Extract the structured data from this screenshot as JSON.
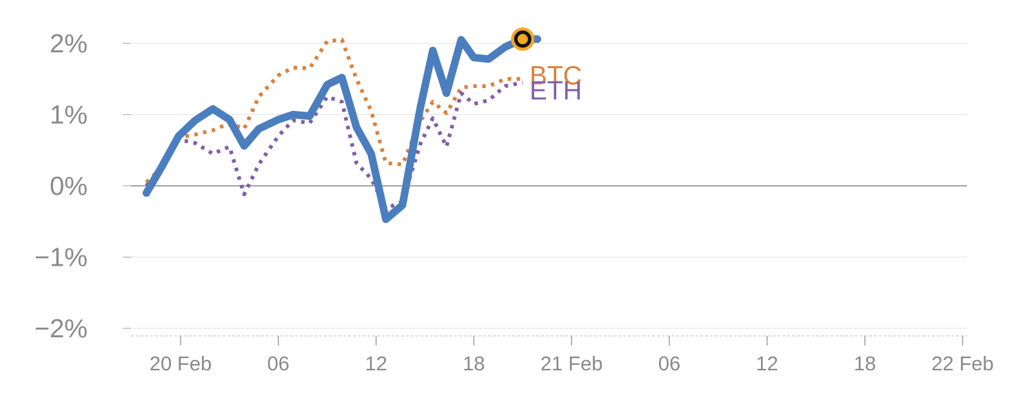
{
  "chart_data": {
    "type": "line",
    "title": "",
    "xlabel": "",
    "ylabel": "",
    "ylim": [
      -2,
      2
    ],
    "y_ticks": [
      {
        "value": 2,
        "label": "2%"
      },
      {
        "value": 1,
        "label": "1%"
      },
      {
        "value": 0,
        "label": "0%"
      },
      {
        "value": -1,
        "label": "−1%"
      },
      {
        "value": -2,
        "label": "−2%"
      }
    ],
    "x_hours_range": [
      -5,
      80
    ],
    "x_ticks": [
      {
        "hour": 0,
        "label": "20 Feb"
      },
      {
        "hour": 10,
        "label": "06"
      },
      {
        "hour": 20,
        "label": "12"
      },
      {
        "hour": 30,
        "label": "18"
      },
      {
        "hour": 40,
        "label": "21 Feb"
      },
      {
        "hour": 50,
        "label": "06"
      },
      {
        "hour": 60,
        "label": "12"
      },
      {
        "hour": 70,
        "label": "18"
      },
      {
        "hour": 80,
        "label": "22 Feb"
      }
    ],
    "grid": true,
    "colors": {
      "main": "#4a7ebf",
      "btc": "#d9823b",
      "eth": "#7f5fa6",
      "marker_fill": "#f5a623",
      "marker_stroke": "#111111",
      "grid": "#e6e6e6",
      "zero": "#888888",
      "axis": "#d0d0d0"
    },
    "series": [
      {
        "key": "main",
        "style": "solid",
        "x": [
          -3.5,
          -2,
          -0.2,
          1.5,
          3.3,
          5,
          6.5,
          8,
          10,
          11.5,
          13.2,
          15,
          16.5,
          18,
          19.5,
          21,
          22.7,
          24.5,
          25.8,
          27.2,
          28.7,
          30,
          31.5,
          33.2,
          35,
          36.5
        ],
        "y": [
          -0.1,
          0.25,
          0.7,
          0.92,
          1.08,
          0.93,
          0.56,
          0.8,
          0.93,
          1.0,
          0.98,
          1.42,
          1.52,
          0.82,
          0.45,
          -0.47,
          -0.27,
          1.08,
          1.9,
          1.3,
          2.05,
          1.8,
          1.78,
          1.95,
          2.06,
          2.06
        ]
      },
      {
        "key": "btc",
        "name": "BTC",
        "style": "dotted",
        "x": [
          -3.5,
          -2,
          -0.2,
          1.5,
          3.3,
          5,
          6.5,
          8,
          10,
          11.5,
          13.2,
          15,
          16.5,
          18,
          19.5,
          21,
          22.7,
          24.5,
          25.8,
          27.2,
          28.7,
          30,
          31.5,
          33.2,
          35
        ],
        "y": [
          0.05,
          0.25,
          0.68,
          0.72,
          0.78,
          0.88,
          0.8,
          1.25,
          1.55,
          1.66,
          1.65,
          2.03,
          2.05,
          1.5,
          1.05,
          0.32,
          0.3,
          0.9,
          1.18,
          1.02,
          1.38,
          1.4,
          1.4,
          1.5,
          1.5
        ]
      },
      {
        "key": "eth",
        "name": "ETH",
        "style": "dotted",
        "x": [
          -3.5,
          -2,
          -0.2,
          1.5,
          3.3,
          5,
          6.5,
          8,
          10,
          11.5,
          13.2,
          15,
          16.5,
          18,
          19.5,
          21,
          22.7,
          24.5,
          25.8,
          27.2,
          28.7,
          30,
          31.5,
          33.2,
          35
        ],
        "y": [
          0.0,
          0.25,
          0.65,
          0.6,
          0.45,
          0.55,
          -0.12,
          0.3,
          0.7,
          0.92,
          0.88,
          1.25,
          1.18,
          0.32,
          0.1,
          -0.32,
          -0.22,
          0.58,
          0.95,
          0.55,
          1.3,
          1.15,
          1.2,
          1.4,
          1.45
        ]
      }
    ],
    "end_marker": {
      "hour": 35,
      "value": 2.06
    },
    "series_labels": [
      {
        "key": "btc",
        "text": "BTC",
        "hour": 35.7,
        "value": 1.55
      },
      {
        "key": "eth",
        "text": "ETH",
        "hour": 35.7,
        "value": 1.34
      }
    ]
  }
}
